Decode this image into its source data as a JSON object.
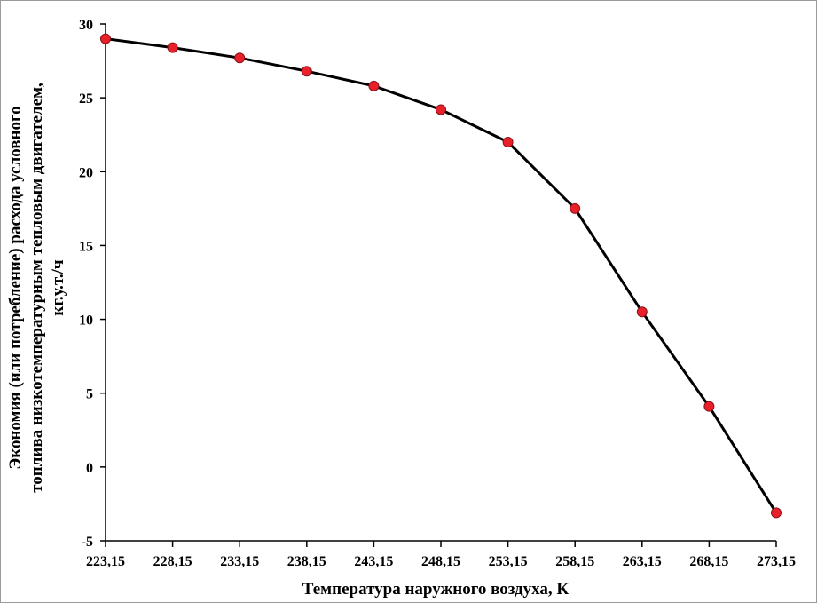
{
  "chart_data": {
    "type": "line",
    "title": "",
    "xlabel": "Температура наружного воздуха, К",
    "ylabel_lines": [
      "Экономия (или потребление) расхода условного",
      "топлива  низкотемпературным тепловым двигателем,",
      "кг.у.т./ч"
    ],
    "x": [
      "223,15",
      "228,15",
      "233,15",
      "238,15",
      "243,15",
      "248,15",
      "253,15",
      "258,15",
      "263,15",
      "268,15",
      "273,15"
    ],
    "series": [
      {
        "values": [
          29.0,
          28.4,
          27.7,
          26.8,
          25.8,
          24.2,
          22.0,
          17.5,
          10.5,
          4.1,
          -3.1
        ],
        "line_color": "#000000",
        "marker_color": "#e8202a"
      }
    ],
    "ylim": [
      -5,
      30
    ],
    "yticks": [
      -5,
      0,
      5,
      10,
      15,
      20,
      25,
      30
    ],
    "grid": false,
    "legend": "none"
  }
}
